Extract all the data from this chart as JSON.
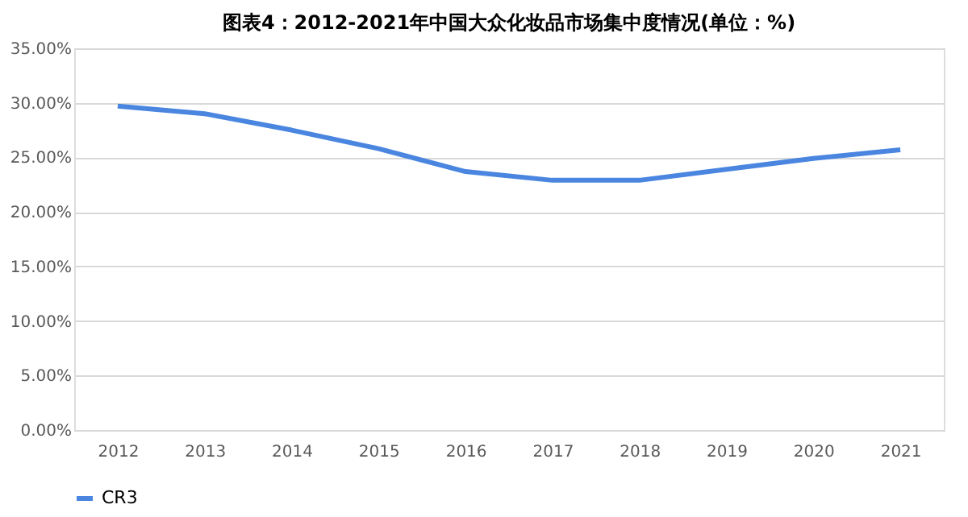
{
  "chart_data": {
    "type": "line",
    "title": "图表4：2012-2021年中国大众化妆品市场集中度情况(单位：%)",
    "categories": [
      "2012",
      "2013",
      "2014",
      "2015",
      "2016",
      "2017",
      "2018",
      "2019",
      "2020",
      "2021"
    ],
    "series": [
      {
        "name": "CR3",
        "color": "#4a86e0",
        "values": [
          29.7,
          29.0,
          27.5,
          25.8,
          23.7,
          22.9,
          22.9,
          23.9,
          24.9,
          25.7
        ]
      }
    ],
    "ylim": [
      0,
      35
    ],
    "yticks": [
      {
        "value": 0,
        "label": "0.00%"
      },
      {
        "value": 5,
        "label": "5.00%"
      },
      {
        "value": 10,
        "label": "10.00%"
      },
      {
        "value": 15,
        "label": "15.00%"
      },
      {
        "value": 20,
        "label": "20.00%"
      },
      {
        "value": 25,
        "label": "25.00%"
      },
      {
        "value": 30,
        "label": "30.00%"
      },
      {
        "value": 35,
        "label": "35.00%"
      }
    ],
    "grid": "y",
    "legend": "bottom",
    "marker": "none",
    "line_style": "solid"
  }
}
